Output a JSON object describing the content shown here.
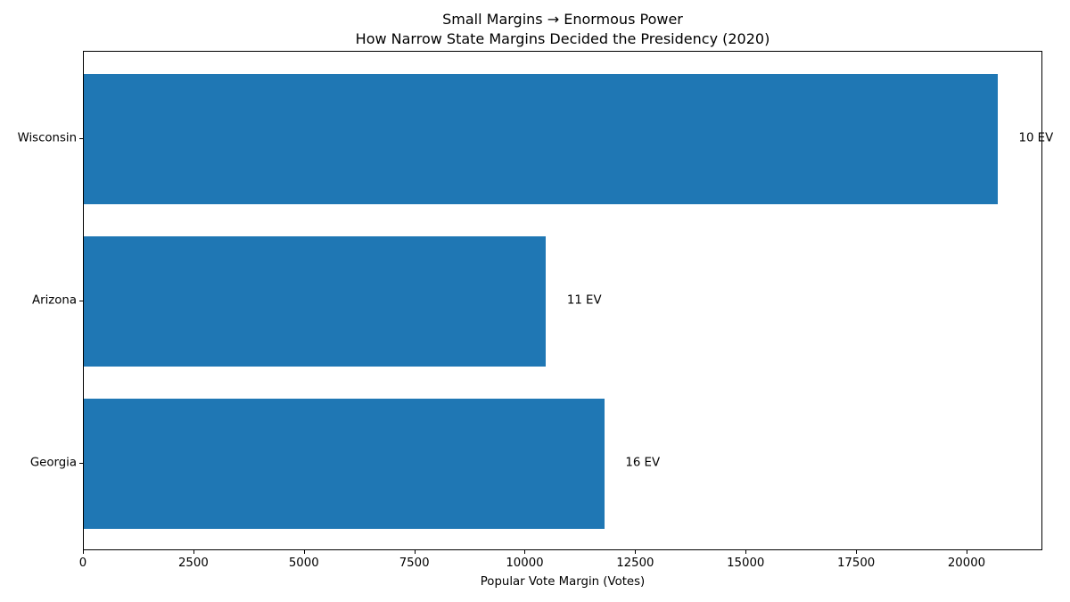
{
  "title": {
    "line1": "Small Margins → Enormous Power",
    "line2": "How Narrow State Margins Decided the Presidency (2020)"
  },
  "chart_data": {
    "type": "bar",
    "orientation": "horizontal",
    "title": "Small Margins → Enormous Power\nHow Narrow State Margins Decided the Presidency (2020)",
    "categories": [
      "Wisconsin",
      "Arizona",
      "Georgia"
    ],
    "values": [
      20682,
      10457,
      11779
    ],
    "bar_labels": [
      "10 EV",
      "11 EV",
      "16 EV"
    ],
    "xlabel": "Popular Vote Margin (Votes)",
    "ylabel": "",
    "xlim": [
      0,
      21716
    ],
    "x_ticks": [
      0,
      2500,
      5000,
      7500,
      10000,
      12500,
      15000,
      17500,
      20000
    ],
    "bar_color": "#1f77b4",
    "text_color": "#000000",
    "grid": false,
    "legend": "none",
    "annotation_offset_votes": 500
  }
}
